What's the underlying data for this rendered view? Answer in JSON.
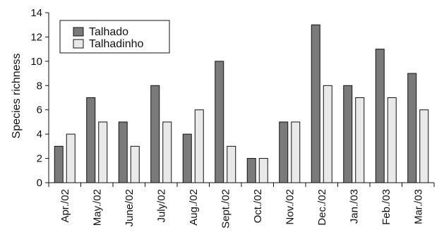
{
  "chart_data": {
    "type": "bar",
    "ylabel": "Species richness",
    "xlabel": "",
    "ylim": [
      0,
      14
    ],
    "yticks": [
      0,
      2,
      4,
      6,
      8,
      10,
      12,
      14
    ],
    "grid": false,
    "legend": "top-left",
    "categories": [
      "Apr./02",
      "May./02",
      "June/02",
      "July/02",
      "Aug./02",
      "Sept./02",
      "Oct./02",
      "Nov./02",
      "Dec./02",
      "Jan./03",
      "Feb./03",
      "Mar./03"
    ],
    "series": [
      {
        "name": "Talhado",
        "color": "#7a7a7a",
        "values": [
          3,
          7,
          5,
          8,
          4,
          10,
          2,
          5,
          13,
          8,
          11,
          9
        ]
      },
      {
        "name": "Talhadinho",
        "color": "#e9e9e9",
        "values": [
          4,
          5,
          3,
          5,
          6,
          3,
          2,
          5,
          8,
          7,
          7,
          6
        ]
      }
    ]
  }
}
